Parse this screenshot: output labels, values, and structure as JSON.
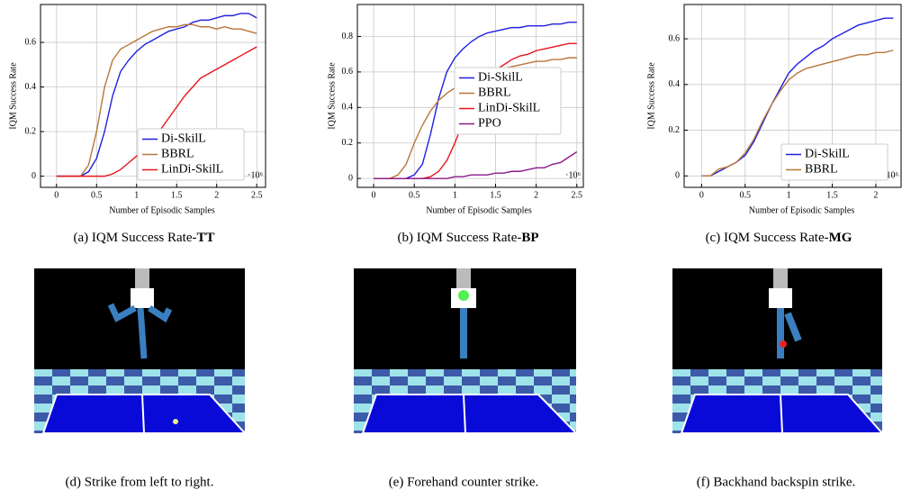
{
  "chart_data": [
    {
      "type": "line",
      "caption": "(a) IQM Success Rate-",
      "caption_bold": "TT",
      "xlabel": "Number of Episodic Samples",
      "ylabel": "IQM Success Rate",
      "x_multiplier": "·10⁶",
      "x": [
        0,
        0.1,
        0.2,
        0.3,
        0.4,
        0.5,
        0.6,
        0.7,
        0.8,
        0.9,
        1,
        1.1,
        1.2,
        1.3,
        1.4,
        1.5,
        1.6,
        1.7,
        1.8,
        1.9,
        2,
        2.1,
        2.2,
        2.3,
        2.4,
        2.5
      ],
      "xlim": [
        -0.2,
        2.61
      ],
      "xticks": [
        0,
        0.5,
        1,
        1.5,
        2,
        2.5
      ],
      "ylim": [
        -0.05,
        0.77
      ],
      "yticks": [
        0,
        0.2,
        0.4,
        0.6
      ],
      "grid": true,
      "legend": "lower right",
      "series": [
        {
          "name": "Di-SkilL",
          "color": "#1f1fe0",
          "values": [
            0,
            0,
            0,
            0,
            0.02,
            0.08,
            0.2,
            0.36,
            0.47,
            0.52,
            0.56,
            0.59,
            0.61,
            0.63,
            0.65,
            0.66,
            0.67,
            0.69,
            0.7,
            0.7,
            0.71,
            0.72,
            0.72,
            0.73,
            0.73,
            0.71
          ]
        },
        {
          "name": "BBRL",
          "color": "#b8763a",
          "values": [
            0,
            0,
            0,
            0,
            0.05,
            0.2,
            0.4,
            0.52,
            0.57,
            0.59,
            0.61,
            0.63,
            0.65,
            0.66,
            0.67,
            0.67,
            0.68,
            0.68,
            0.67,
            0.67,
            0.66,
            0.67,
            0.66,
            0.66,
            0.65,
            0.64
          ]
        },
        {
          "name": "LinDi-SkilL",
          "color": "#e8141e",
          "values": [
            0,
            0,
            0,
            0,
            0,
            0,
            0,
            0.01,
            0.03,
            0.06,
            0.09,
            0.12,
            0.16,
            0.21,
            0.26,
            0.31,
            0.36,
            0.4,
            0.44,
            0.46,
            0.48,
            0.5,
            0.52,
            0.54,
            0.56,
            0.58
          ]
        }
      ]
    },
    {
      "type": "line",
      "caption": "(b) IQM Success Rate-",
      "caption_bold": "BP",
      "xlabel": "Number of Episodic Samples",
      "ylabel": "IQM Success Rate",
      "x_multiplier": "·10⁶",
      "x": [
        0,
        0.1,
        0.2,
        0.3,
        0.4,
        0.5,
        0.6,
        0.7,
        0.8,
        0.9,
        1,
        1.1,
        1.2,
        1.3,
        1.4,
        1.5,
        1.6,
        1.7,
        1.8,
        1.9,
        2,
        2.1,
        2.2,
        2.3,
        2.4,
        2.5
      ],
      "xlim": [
        -0.2,
        2.58
      ],
      "xticks": [
        0,
        0.5,
        1,
        1.5,
        2,
        2.5
      ],
      "ylim": [
        -0.05,
        0.98
      ],
      "yticks": [
        0,
        0.2,
        0.4,
        0.6,
        0.8
      ],
      "grid": true,
      "legend": "center right",
      "series": [
        {
          "name": "Di-SkilL",
          "color": "#1f1fe0",
          "values": [
            0,
            0,
            0,
            0,
            0,
            0.02,
            0.08,
            0.25,
            0.45,
            0.6,
            0.68,
            0.73,
            0.77,
            0.8,
            0.82,
            0.83,
            0.84,
            0.85,
            0.85,
            0.86,
            0.86,
            0.86,
            0.87,
            0.87,
            0.88,
            0.88
          ]
        },
        {
          "name": "BBRL",
          "color": "#b8763a",
          "values": [
            0,
            0,
            0,
            0.02,
            0.08,
            0.2,
            0.3,
            0.38,
            0.44,
            0.48,
            0.51,
            0.54,
            0.56,
            0.58,
            0.6,
            0.61,
            0.62,
            0.63,
            0.64,
            0.65,
            0.66,
            0.66,
            0.67,
            0.67,
            0.68,
            0.68
          ]
        },
        {
          "name": "LinDi-SkilL",
          "color": "#e8141e",
          "values": [
            0,
            0,
            0,
            0,
            0,
            0,
            0,
            0.01,
            0.04,
            0.1,
            0.2,
            0.32,
            0.42,
            0.5,
            0.56,
            0.61,
            0.64,
            0.67,
            0.69,
            0.7,
            0.72,
            0.73,
            0.74,
            0.75,
            0.76,
            0.76
          ]
        },
        {
          "name": "PPO",
          "color": "#8a1a8a",
          "values": [
            0,
            0,
            0,
            0,
            0,
            0,
            0,
            0,
            0,
            0,
            0.01,
            0.01,
            0.02,
            0.02,
            0.02,
            0.03,
            0.03,
            0.04,
            0.04,
            0.05,
            0.06,
            0.06,
            0.08,
            0.09,
            0.12,
            0.15
          ]
        }
      ]
    },
    {
      "type": "line",
      "caption": "(c) IQM Success Rate-",
      "caption_bold": "MG",
      "xlabel": "Number of Episodic Samples",
      "ylabel": "IQM Success Rate",
      "x_multiplier": "·10⁶",
      "x": [
        0,
        0.1,
        0.2,
        0.3,
        0.4,
        0.5,
        0.6,
        0.7,
        0.8,
        0.9,
        1,
        1.1,
        1.2,
        1.3,
        1.4,
        1.5,
        1.6,
        1.7,
        1.8,
        1.9,
        2,
        2.1,
        2.2
      ],
      "xlim": [
        -0.2,
        2.29
      ],
      "xticks": [
        0,
        0.5,
        1,
        1.5,
        2
      ],
      "ylim": [
        -0.05,
        0.75
      ],
      "yticks": [
        0,
        0.2,
        0.4,
        0.6
      ],
      "grid": true,
      "legend": "lower right",
      "series": [
        {
          "name": "Di-SkilL",
          "color": "#1f1fe0",
          "values": [
            0,
            0,
            0.02,
            0.04,
            0.06,
            0.09,
            0.15,
            0.23,
            0.31,
            0.38,
            0.45,
            0.49,
            0.52,
            0.55,
            0.57,
            0.6,
            0.62,
            0.64,
            0.66,
            0.67,
            0.68,
            0.69,
            0.69
          ]
        },
        {
          "name": "BBRL",
          "color": "#b8763a",
          "values": [
            0,
            0,
            0.03,
            0.04,
            0.06,
            0.1,
            0.16,
            0.24,
            0.31,
            0.37,
            0.42,
            0.45,
            0.47,
            0.48,
            0.49,
            0.5,
            0.51,
            0.52,
            0.53,
            0.53,
            0.54,
            0.54,
            0.55
          ]
        }
      ]
    }
  ],
  "image_captions": [
    "(d) Strike from left to right.",
    "(e) Forehand counter strike.",
    "(f) Backhand backspin strike."
  ]
}
